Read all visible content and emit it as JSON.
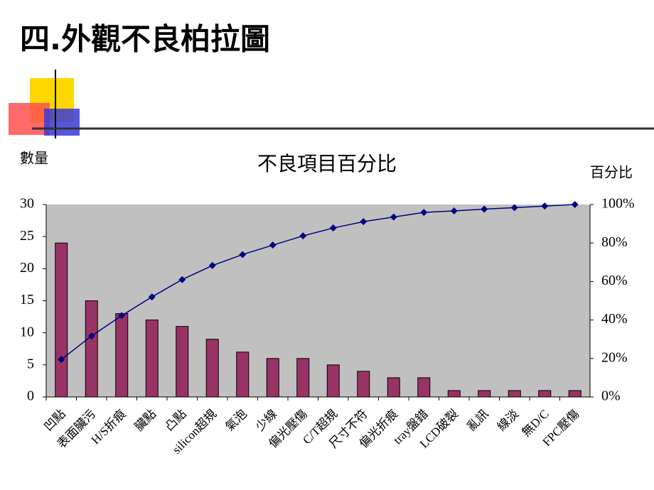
{
  "slide_title": "四.外觀不良柏拉圖",
  "chart_data": {
    "type": "pareto",
    "title": "不良項目百分比",
    "y_label": "數量",
    "y2_label": "百分比",
    "categories": [
      "凹點",
      "表面臟污",
      "H/S折痕",
      "臟點",
      "凸點",
      "silicon超規",
      "氣泡",
      "少線",
      "偏光壓傷",
      "C/T超規",
      "尺寸不符",
      "偏光折痕",
      "tray盤錯",
      "LCD破裂",
      "亂訊",
      "線淡",
      "無D/C",
      "FPC壓傷"
    ],
    "series": [
      {
        "type": "bar",
        "color": "#993366",
        "values": [
          24,
          15,
          13,
          12,
          11,
          9,
          7,
          6,
          6,
          5,
          4,
          3,
          3,
          1,
          1,
          1,
          1,
          1
        ]
      },
      {
        "type": "line",
        "axis": "y2",
        "color": "#000080",
        "values": [
          19.5,
          31.7,
          42.3,
          52.0,
          61.0,
          68.3,
          74.0,
          78.9,
          83.7,
          87.8,
          91.1,
          93.5,
          95.9,
          96.7,
          97.6,
          98.4,
          99.2,
          100
        ]
      }
    ],
    "ylim": [
      0,
      30
    ],
    "yticks": [
      0,
      5,
      10,
      15,
      20,
      25,
      30
    ],
    "y2lim": [
      0,
      100
    ],
    "y2ticks": [
      {
        "value": 0,
        "label": "0%"
      },
      {
        "value": 20,
        "label": "20%"
      },
      {
        "value": 40,
        "label": "40%"
      },
      {
        "value": 60,
        "label": "60%"
      },
      {
        "value": 80,
        "label": "80%"
      },
      {
        "value": 100,
        "label": "100%"
      }
    ],
    "grid": false,
    "plot_background": "#c0c0c0"
  }
}
